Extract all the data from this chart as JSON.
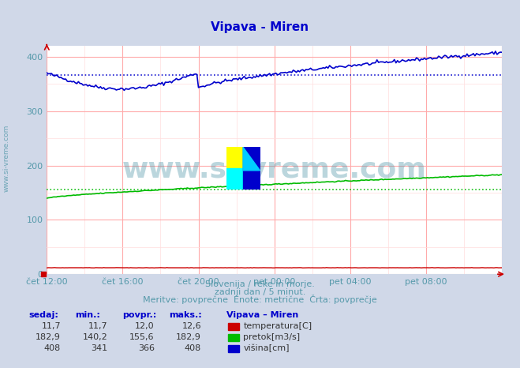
{
  "title": "Vipava - Miren",
  "title_color": "#0000cc",
  "bg_color": "#d0d8e8",
  "plot_bg_color": "#ffffff",
  "grid_color_major": "#ffaaaa",
  "grid_color_minor": "#ffdddd",
  "tick_color": "#5599aa",
  "subtitle_color": "#5599aa",
  "ylim": [
    0,
    420
  ],
  "yticks": [
    0,
    100,
    200,
    300,
    400
  ],
  "xtick_positions": [
    0,
    48,
    96,
    144,
    192,
    240,
    288
  ],
  "xtick_labels": [
    "čet 12:00",
    "čet 16:00",
    "čet 20:00",
    "pet 00:00",
    "pet 04:00",
    "pet 08:00",
    ""
  ],
  "subtitle1": "Slovenija / reke in morje.",
  "subtitle2": "zadnji dan / 5 minut.",
  "subtitle3": "Meritve: povprečne  Enote: metrične  Črta: povprečje",
  "legend_title": "Vipava – Miren",
  "legend_items": [
    {
      "label": "temperatura[C]",
      "color": "#cc0000"
    },
    {
      "label": "pretok[m3/s]",
      "color": "#00bb00"
    },
    {
      "label": "višina[cm]",
      "color": "#0000cc"
    }
  ],
  "table_headers": [
    "sedaj:",
    "min.:",
    "povpr.:",
    "maks.:"
  ],
  "table_rows": [
    [
      "11,7",
      "11,7",
      "12,0",
      "12,6"
    ],
    [
      "182,9",
      "140,2",
      "155,6",
      "182,9"
    ],
    [
      "408",
      "341",
      "366",
      "408"
    ]
  ],
  "height_avg": 366,
  "flow_avg": 155.6,
  "temp_color": "#cc0000",
  "flow_color": "#00bb00",
  "height_color": "#0000cc",
  "watermark": "www.si-vreme.com",
  "side_label": "www.si-vreme.com"
}
